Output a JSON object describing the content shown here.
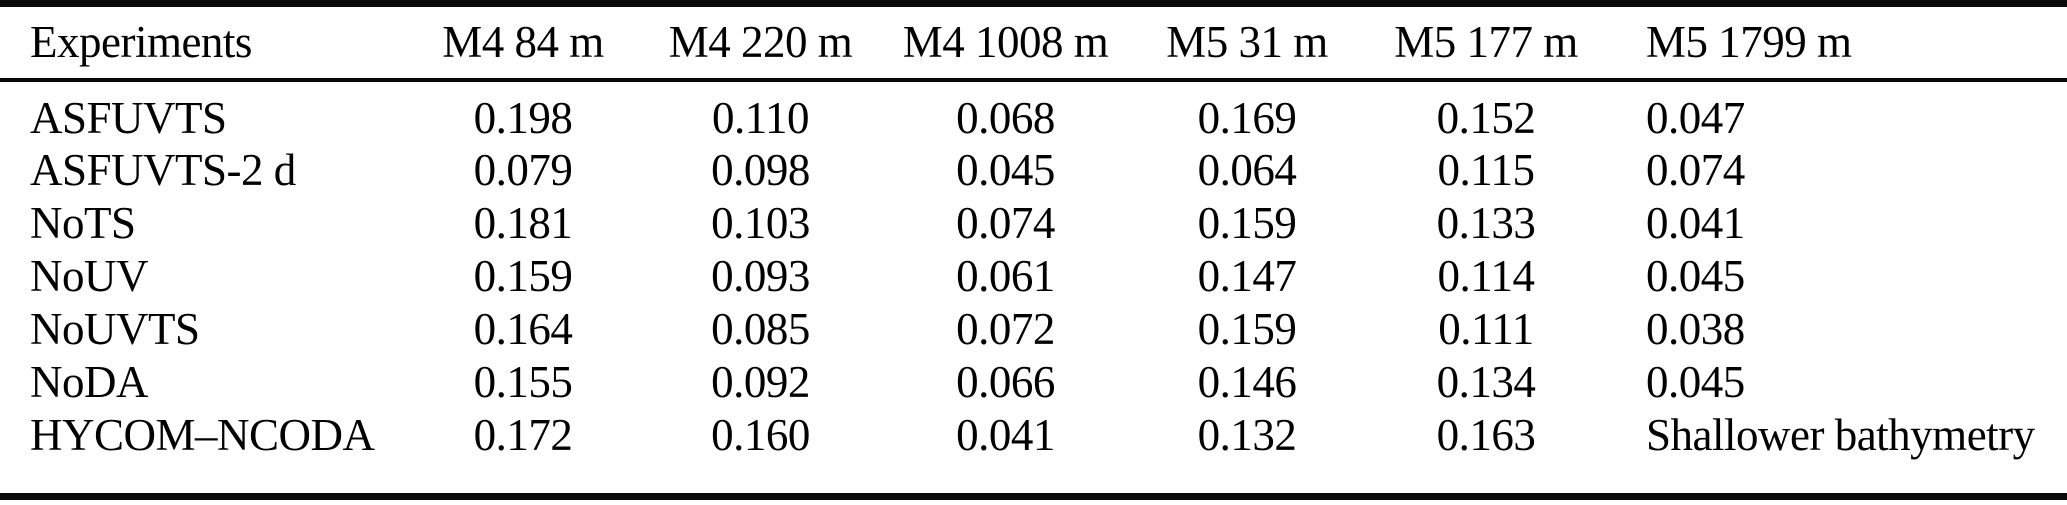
{
  "table": {
    "columns": [
      "Experiments",
      "M4 84 m",
      "M4 220 m",
      "M4 1008 m",
      "M5 31 m",
      "M5 177 m",
      "M5 1799 m"
    ],
    "rows": [
      {
        "experiment": "ASFUVTS",
        "values": [
          "0.198",
          "0.110",
          "0.068",
          "0.169",
          "0.152",
          "0.047"
        ]
      },
      {
        "experiment": "ASFUVTS-2 d",
        "values": [
          "0.079",
          "0.098",
          "0.045",
          "0.064",
          "0.115",
          "0.074"
        ]
      },
      {
        "experiment": "NoTS",
        "values": [
          "0.181",
          "0.103",
          "0.074",
          "0.159",
          "0.133",
          "0.041"
        ]
      },
      {
        "experiment": "NoUV",
        "values": [
          "0.159",
          "0.093",
          "0.061",
          "0.147",
          "0.114",
          "0.045"
        ]
      },
      {
        "experiment": "NoUVTS",
        "values": [
          "0.164",
          "0.085",
          "0.072",
          "0.159",
          "0.111",
          "0.038"
        ]
      },
      {
        "experiment": "NoDA",
        "values": [
          "0.155",
          "0.092",
          "0.066",
          "0.146",
          "0.134",
          "0.045"
        ]
      },
      {
        "experiment": "HYCOM–NCODA",
        "values": [
          "0.172",
          "0.160",
          "0.041",
          "0.132",
          "0.163",
          "Shallower bathymetry"
        ]
      }
    ]
  },
  "colors": {
    "text": "#000000",
    "background": "#ffffff",
    "rule": "#0b0b0b"
  }
}
